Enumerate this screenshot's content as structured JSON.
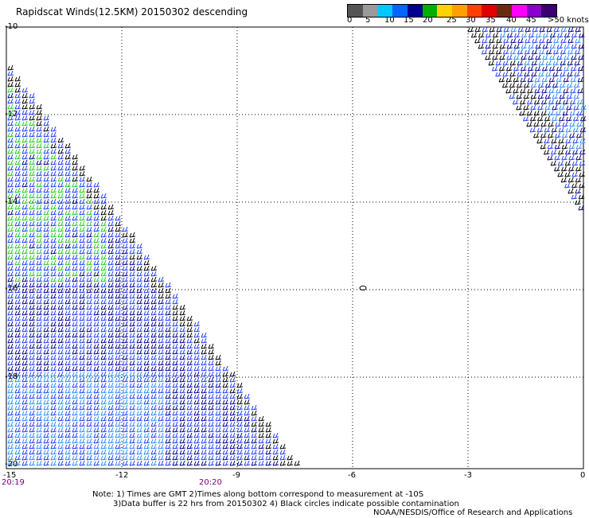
{
  "title": "Rapidscat Winds(12.5KM) 20150302 descending",
  "colorbar": {
    "labels": [
      "0",
      "5",
      "10",
      "15",
      "20",
      "25",
      "30",
      "35",
      "40",
      "45",
      ">50 knots"
    ],
    "colors": [
      "#555555",
      "#9a9a9a",
      "#00c8ff",
      "#0066ff",
      "#000090",
      "#00b000",
      "#ffd200",
      "#ffa000",
      "#ff4000",
      "#e00000",
      "#6a2a10",
      "#ff00ff",
      "#8a00cc",
      "#3a0070"
    ]
  },
  "axes": {
    "lat_labels": [
      "-10",
      "-12",
      "-14",
      "-16",
      "-18",
      "-20"
    ],
    "lon_labels": [
      "-15",
      "-12",
      "-9",
      "-6",
      "-3",
      "0"
    ],
    "time_labels": [
      "20:19",
      "20:20"
    ]
  },
  "notes": {
    "line1": "Note: 1) Times are GMT 2)Times along bottom correspond to measurement at -10S",
    "line2": "3)Data buffer is 22 hrs from 20150302 4) Black circles indicate possible contamination",
    "line3": "NOAA/NESDIS/Office of Research and Applications"
  },
  "legend_colors": {
    "black": "#000000",
    "dark_blue": "#00008b",
    "blue": "#1e3cff",
    "light_blue": "#2a8cff",
    "green": "#22cc22"
  }
}
